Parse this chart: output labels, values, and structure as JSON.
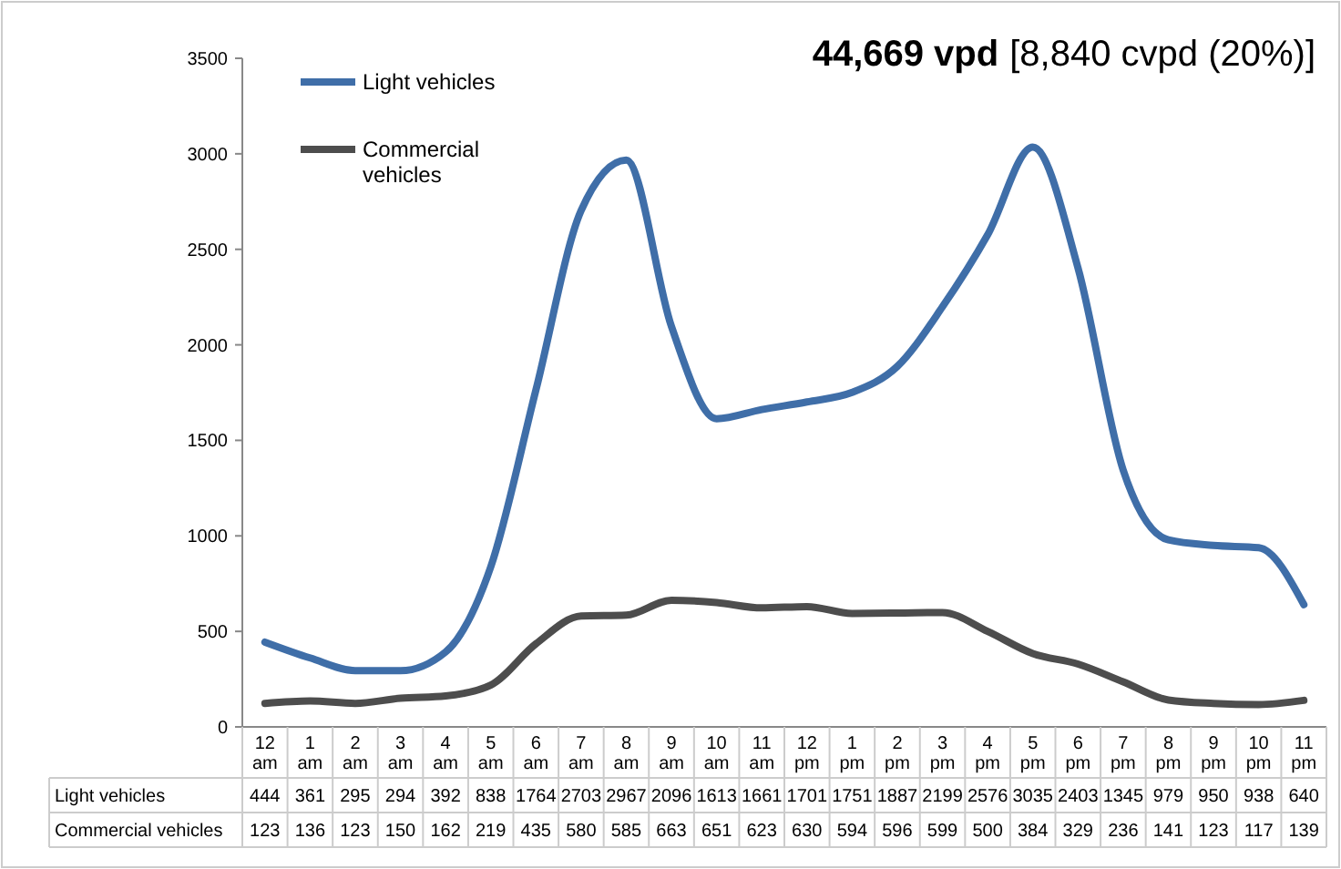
{
  "chart_data": {
    "type": "line",
    "title": "44,669 vpd",
    "subtitle": "[8,840 cvpd (20%)]",
    "categories": [
      "12 am",
      "1 am",
      "2 am",
      "3 am",
      "4 am",
      "5 am",
      "6 am",
      "7 am",
      "8 am",
      "9 am",
      "10 am",
      "11 am",
      "12 pm",
      "1 pm",
      "2 pm",
      "3 pm",
      "4 pm",
      "5 pm",
      "6 pm",
      "7 pm",
      "8 pm",
      "9 pm",
      "10 pm",
      "11 pm"
    ],
    "series": [
      {
        "name": "Light vehicles",
        "color": "#3f6ea8",
        "values": [
          444,
          361,
          295,
          294,
          392,
          838,
          1764,
          2703,
          2967,
          2096,
          1613,
          1661,
          1701,
          1751,
          1887,
          2199,
          2576,
          3035,
          2403,
          1345,
          979,
          950,
          938,
          640
        ]
      },
      {
        "name": "Commercial vehicles",
        "color": "#4d4d4d",
        "values": [
          123,
          136,
          123,
          150,
          162,
          219,
          435,
          580,
          585,
          663,
          651,
          623,
          630,
          594,
          596,
          599,
          500,
          384,
          329,
          236,
          141,
          123,
          117,
          139
        ]
      }
    ],
    "ylim": [
      0,
      3500
    ],
    "yticks": [
      0,
      500,
      1000,
      1500,
      2000,
      2500,
      3000,
      3500
    ],
    "grid": false,
    "legend": "top left",
    "data_labels": true,
    "marker": "none",
    "line_style": "solid"
  }
}
